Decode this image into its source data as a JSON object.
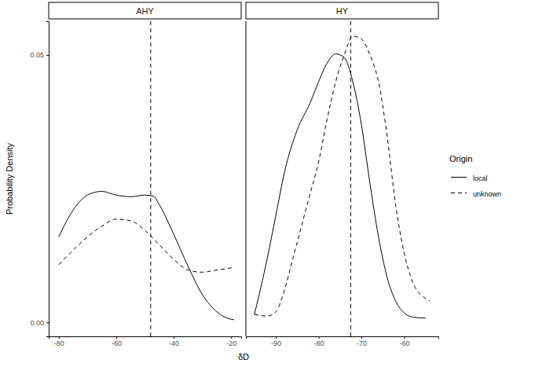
{
  "chart_data": {
    "type": "line",
    "x_label": "δD",
    "y_label": "Probability Density",
    "ylim": [
      -0.0026,
      0.0563
    ],
    "yticks": [
      {
        "value": 0,
        "label": "0.00"
      },
      0.05
    ],
    "legend": "right",
    "legend_title": "Origin",
    "series": [
      {
        "name": "local",
        "color": "#000000",
        "line_style": "solid"
      },
      {
        "name": "unknown",
        "color": "#000000",
        "line_style": "dashed"
      }
    ],
    "panels": [
      {
        "title": "AHY",
        "xlim": [
          -83.5,
          -16.5
        ],
        "xticks": [
          -80,
          -60,
          -40,
          -20
        ],
        "vline": -48,
        "series": [
          {
            "name": "local",
            "x": [
              -80,
              -75,
              -70,
              -65,
              -60,
              -55,
              -50,
              -47,
              -45,
              -40,
              -35,
              -30,
              -25,
              -20,
              -19
            ],
            "values": [
              0.016,
              0.021,
              0.0238,
              0.0245,
              0.0238,
              0.0235,
              0.0238,
              0.0236,
              0.022,
              0.0165,
              0.0105,
              0.0052,
              0.002,
              0.0006,
              0.0005
            ]
          },
          {
            "name": "unknown",
            "x": [
              -80,
              -75,
              -70,
              -65,
              -60,
              -55,
              -50,
              -45,
              -40,
              -35,
              -30,
              -25,
              -20,
              -19
            ],
            "values": [
              0.0108,
              0.0135,
              0.016,
              0.018,
              0.0193,
              0.019,
              0.0172,
              0.0145,
              0.0118,
              0.0098,
              0.0094,
              0.0098,
              0.0102,
              0.0103
            ]
          }
        ]
      },
      {
        "title": "HY",
        "xlim": [
          -97,
          -52
        ],
        "xticks": [
          -90,
          -80,
          -70,
          -60
        ],
        "vline": -72.5,
        "series": [
          {
            "name": "local",
            "x": [
              -95,
              -92,
              -90,
              -88,
              -85,
              -82,
              -80,
              -78,
              -76,
              -74,
              -72,
              -70,
              -68,
              -66,
              -64,
              -62,
              -60,
              -58,
              -55
            ],
            "values": [
              0.0015,
              0.012,
              0.02,
              0.028,
              0.036,
              0.041,
              0.045,
              0.0485,
              0.0502,
              0.0495,
              0.045,
              0.037,
              0.026,
              0.016,
              0.0085,
              0.004,
              0.0018,
              0.001,
              0.0008
            ]
          },
          {
            "name": "unknown",
            "x": [
              -95,
              -92,
              -90,
              -88,
              -86,
              -84,
              -82,
              -80,
              -78,
              -76,
              -74,
              -72,
              -70,
              -68,
              -66,
              -64,
              -62,
              -60,
              -58,
              -55,
              -54
            ],
            "values": [
              0.0015,
              0.0012,
              0.002,
              0.006,
              0.012,
              0.018,
              0.024,
              0.03,
              0.038,
              0.045,
              0.05,
              0.0535,
              0.053,
              0.05,
              0.045,
              0.035,
              0.022,
              0.013,
              0.0075,
              0.0045,
              0.004
            ]
          }
        ]
      }
    ]
  }
}
